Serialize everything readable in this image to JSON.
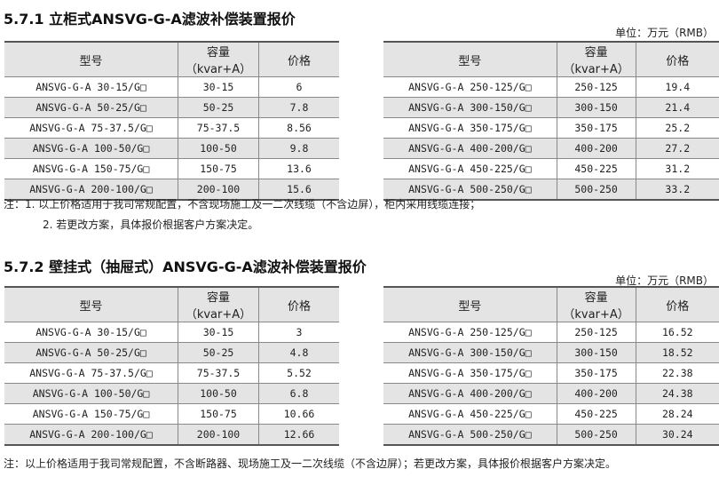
{
  "sections": [
    {
      "title": "5.7.1 立柜式ANSVG-G-A滤波补偿装置报价",
      "unit": "单位：万元（RMB）",
      "headers": [
        "型号",
        "容量（kvar+A）",
        "价格"
      ],
      "left": [
        [
          "ANSVG-G-A 30-15/G□",
          "30-15",
          "6"
        ],
        [
          "ANSVG-G-A 50-25/G□",
          "50-25",
          "7.8"
        ],
        [
          "ANSVG-G-A 75-37.5/G□",
          "75-37.5",
          "8.56"
        ],
        [
          "ANSVG-G-A 100-50/G□",
          "100-50",
          "9.8"
        ],
        [
          "ANSVG-G-A 150-75/G□",
          "150-75",
          "13.6"
        ],
        [
          "ANSVG-G-A 200-100/G□",
          "200-100",
          "15.6"
        ]
      ],
      "right": [
        [
          "ANSVG-G-A 250-125/G□",
          "250-125",
          "19.4"
        ],
        [
          "ANSVG-G-A 300-150/G□",
          "300-150",
          "21.4"
        ],
        [
          "ANSVG-G-A 350-175/G□",
          "350-175",
          "25.2"
        ],
        [
          "ANSVG-G-A 400-200/G□",
          "400-200",
          "27.2"
        ],
        [
          "ANSVG-G-A 450-225/G□",
          "450-225",
          "31.2"
        ],
        [
          "ANSVG-G-A 500-250/G□",
          "500-250",
          "33.2"
        ]
      ],
      "notes": [
        "注：1. 以上价格适用于我司常规配置，不含现场施工及一二次线缆（不含边屏），柜内采用线缆连接；",
        "2. 若更改方案，具体报价根据客户方案决定。"
      ]
    },
    {
      "title": "5.7.2 壁挂式（抽屉式）ANSVG-G-A滤波补偿装置报价",
      "unit": "单位：万元（RMB）",
      "headers": [
        "型号",
        "容量（kvar+A）",
        "价格"
      ],
      "left": [
        [
          "ANSVG-G-A 30-15/G□",
          "30-15",
          "3"
        ],
        [
          "ANSVG-G-A 50-25/G□",
          "50-25",
          "4.8"
        ],
        [
          "ANSVG-G-A 75-37.5/G□",
          "75-37.5",
          "5.52"
        ],
        [
          "ANSVG-G-A 100-50/G□",
          "100-50",
          "6.8"
        ],
        [
          "ANSVG-G-A 150-75/G□",
          "150-75",
          "10.66"
        ],
        [
          "ANSVG-G-A 200-100/G□",
          "200-100",
          "12.66"
        ]
      ],
      "right": [
        [
          "ANSVG-G-A 250-125/G□",
          "250-125",
          "16.52"
        ],
        [
          "ANSVG-G-A 300-150/G□",
          "300-150",
          "18.52"
        ],
        [
          "ANSVG-G-A 350-175/G□",
          "350-175",
          "22.38"
        ],
        [
          "ANSVG-G-A 400-200/G□",
          "400-200",
          "24.38"
        ],
        [
          "ANSVG-G-A 450-225/G□",
          "450-225",
          "28.24"
        ],
        [
          "ANSVG-G-A 500-250/G□",
          "500-250",
          "30.24"
        ]
      ],
      "notes": [
        "注：以上价格适用于我司常规配置，不含断路器、现场施工及一二次线缆（不含边屏）；若更改方案，具体报价根据客户方案决定。"
      ]
    }
  ]
}
